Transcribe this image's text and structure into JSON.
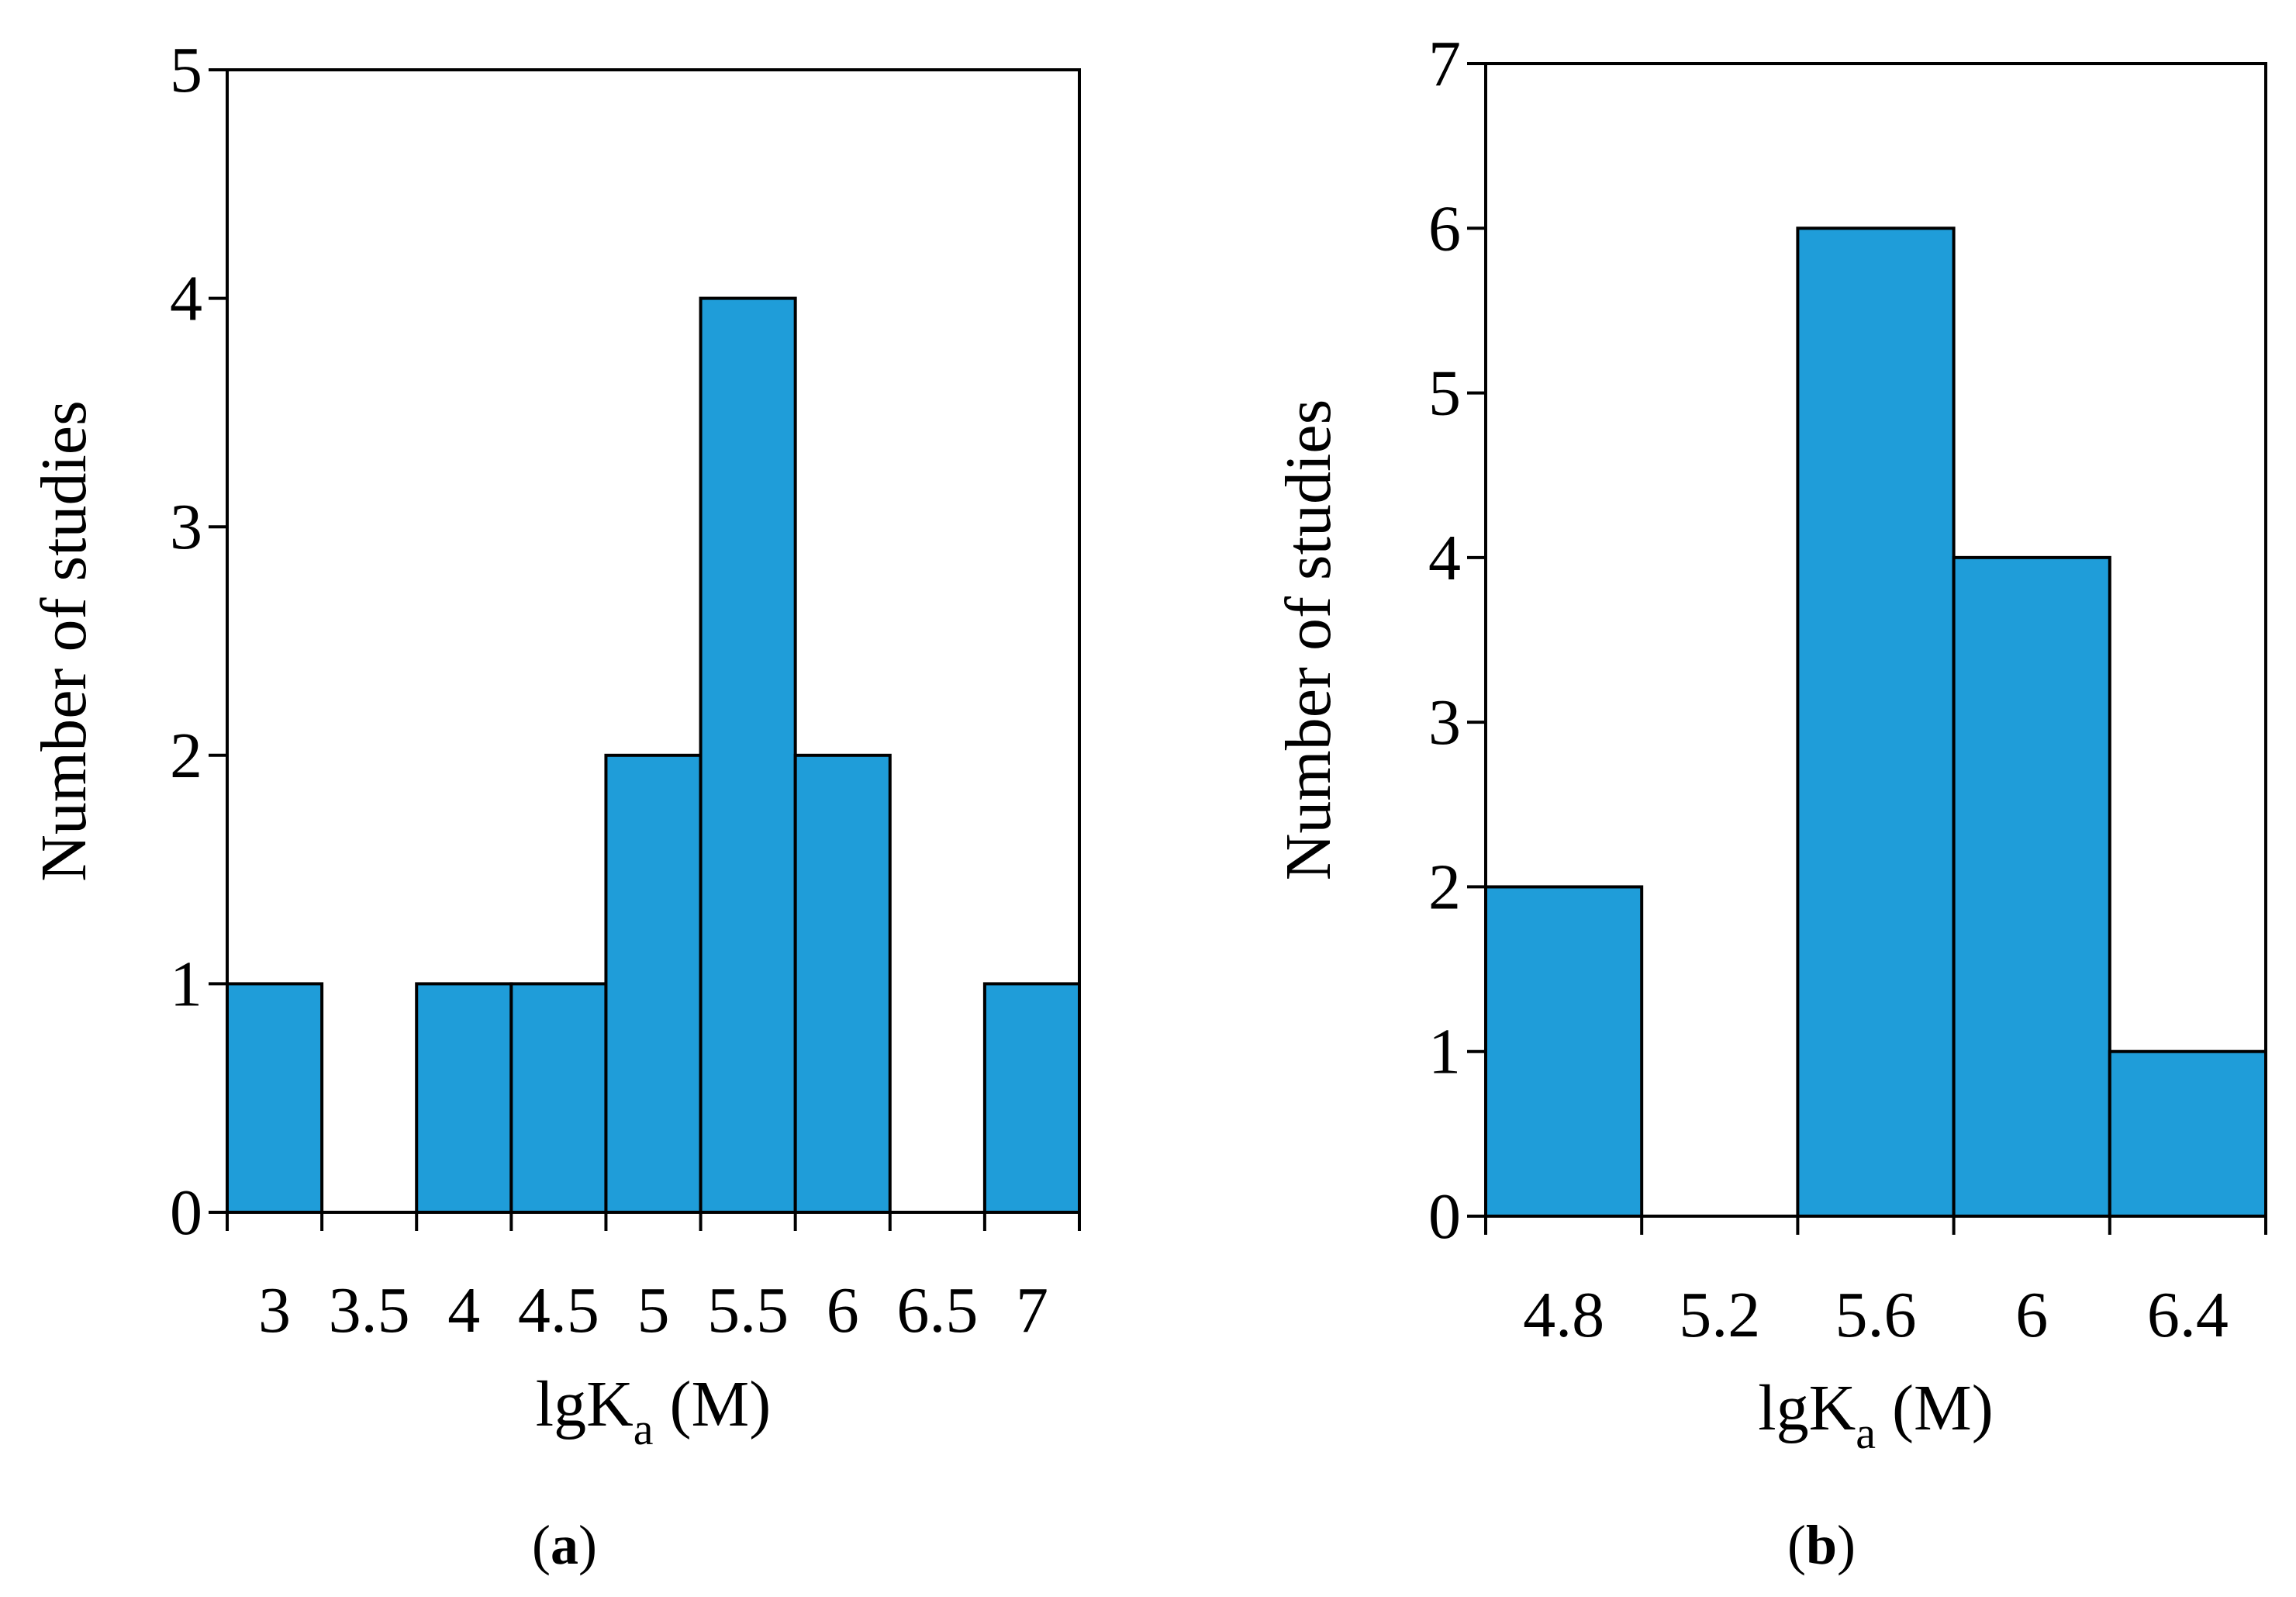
{
  "chart_data": [
    {
      "type": "bar",
      "panel": "a",
      "panel_label": {
        "open": "(",
        "letter": "a",
        "close": ")"
      },
      "title": "",
      "ylabel": "Number of studies",
      "xlabel": {
        "main": "lgK",
        "sub": "a",
        "unit": " (M)"
      },
      "ylim": [
        0,
        5
      ],
      "yticks": [
        "0",
        "1",
        "2",
        "3",
        "4",
        "5"
      ],
      "xlim": [
        2.75,
        7.25
      ],
      "xticks": [
        "3",
        "3.5",
        "4",
        "4.5",
        "5",
        "5.5",
        "6",
        "6.5",
        "7"
      ],
      "bin_edges": [
        2.75,
        3.25,
        3.75,
        4.25,
        4.75,
        5.25,
        5.75,
        6.25,
        6.75,
        7.25
      ],
      "values": [
        1,
        0,
        1,
        1,
        2,
        4,
        2,
        0,
        1
      ],
      "bar_color": "#1f9dd9"
    },
    {
      "type": "bar",
      "panel": "b",
      "panel_label": {
        "open": "(",
        "letter": "b",
        "close": ")"
      },
      "title": "",
      "ylabel": "Number of studies",
      "xlabel": {
        "main": "lgK",
        "sub": "a",
        "unit": " (M)"
      },
      "ylim": [
        0,
        7
      ],
      "yticks": [
        "0",
        "1",
        "2",
        "3",
        "4",
        "5",
        "6",
        "7"
      ],
      "xlim": [
        4.6,
        6.6
      ],
      "xticks": [
        "4.8",
        "5.2",
        "5.6",
        "6",
        "6.4"
      ],
      "bin_edges": [
        4.6,
        5.0,
        5.4,
        5.8,
        6.2,
        6.6
      ],
      "values": [
        2,
        0,
        6,
        4,
        1
      ],
      "bar_color": "#1f9dd9"
    }
  ]
}
